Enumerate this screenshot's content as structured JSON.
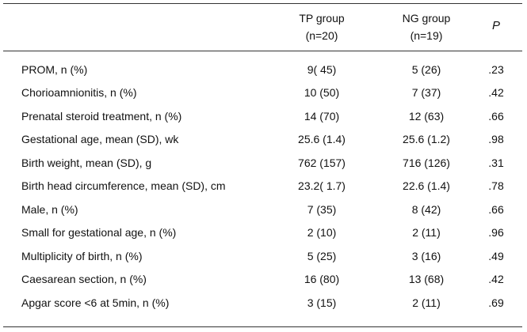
{
  "header": {
    "tp_line1": "TP group",
    "tp_line2": "(n=20)",
    "ng_line1": "NG group",
    "ng_line2": "(n=19)",
    "p_label": "P"
  },
  "rows": [
    {
      "label": "PROM, n (%)",
      "tp": "9( 45)",
      "ng": "5 (26)",
      "p": ".23"
    },
    {
      "label": "Chorioamnionitis, n (%)",
      "tp": "10 (50)",
      "ng": "7 (37)",
      "p": ".42"
    },
    {
      "label": "Prenatal steroid treatment, n (%)",
      "tp": "14 (70)",
      "ng": "12 (63)",
      "p": ".66"
    },
    {
      "label": "Gestational age, mean (SD), wk",
      "tp": "25.6 (1.4)",
      "ng": "25.6 (1.2)",
      "p": ".98"
    },
    {
      "label": "Birth weight, mean (SD), g",
      "tp": "762 (157)",
      "ng": "716 (126)",
      "p": ".31"
    },
    {
      "label": "Birth head circumference, mean (SD), cm",
      "tp": "23.2( 1.7)",
      "ng": "22.6 (1.4)",
      "p": ".78"
    },
    {
      "label": "Male, n (%)",
      "tp": "7 (35)",
      "ng": "8 (42)",
      "p": ".66"
    },
    {
      "label": "Small for gestational age, n (%)",
      "tp": "2 (10)",
      "ng": "2 (11)",
      "p": ".96"
    },
    {
      "label": "Multiplicity of birth, n (%)",
      "tp": "5 (25)",
      "ng": "3 (16)",
      "p": ".49"
    },
    {
      "label": "Caesarean section, n (%)",
      "tp": "16 (80)",
      "ng": "13 (68)",
      "p": ".42"
    },
    {
      "label": "Apgar score <6 at 5min, n (%)",
      "tp": "3 (15)",
      "ng": "2 (11)",
      "p": ".69"
    }
  ]
}
